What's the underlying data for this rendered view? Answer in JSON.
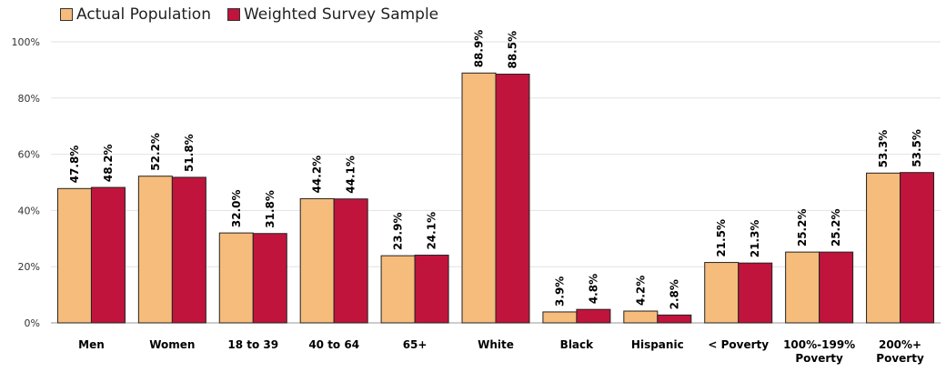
{
  "chart_data": {
    "type": "bar",
    "categories": [
      [
        "Men"
      ],
      [
        "Women"
      ],
      [
        "18 to 39"
      ],
      [
        "40 to 64"
      ],
      [
        "65+"
      ],
      [
        "White"
      ],
      [
        "Black"
      ],
      [
        "Hispanic"
      ],
      [
        "< Poverty"
      ],
      [
        "100%-199%",
        "Poverty"
      ],
      [
        "200%+",
        "Poverty"
      ]
    ],
    "series": [
      {
        "name": "Actual Population",
        "color": "#f5bc7c",
        "values": [
          47.8,
          52.2,
          32.0,
          44.2,
          23.9,
          88.9,
          3.9,
          4.2,
          21.5,
          25.2,
          53.3
        ],
        "labels": [
          "47.8%",
          "52.2%",
          "32.0%",
          "44.2%",
          "23.9%",
          "88.9%",
          "3.9%",
          "4.2%",
          "21.5%",
          "25.2%",
          "53.3%"
        ]
      },
      {
        "name": "Weighted Survey Sample",
        "color": "#c0143c",
        "values": [
          48.2,
          51.8,
          31.8,
          44.1,
          24.1,
          88.5,
          4.8,
          2.8,
          21.3,
          25.2,
          53.5
        ],
        "labels": [
          "48.2%",
          "51.8%",
          "31.8%",
          "44.1%",
          "24.1%",
          "88.5%",
          "4.8%",
          "2.8%",
          "21.3%",
          "25.2%",
          "53.5%"
        ]
      }
    ],
    "yticks": [
      "0%",
      "20%",
      "40%",
      "60%",
      "80%",
      "100%"
    ],
    "ylim": [
      0,
      100
    ],
    "grid": true,
    "legend": "top-left"
  }
}
